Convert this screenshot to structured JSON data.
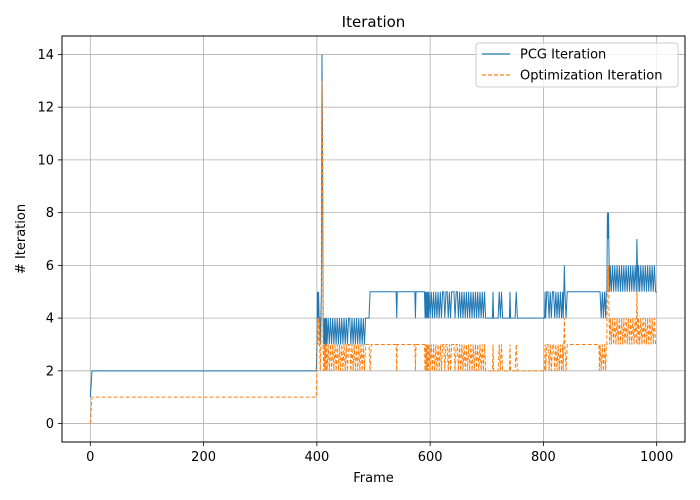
{
  "chart_data": {
    "type": "line",
    "title": "Iteration",
    "xlabel": "Frame",
    "ylabel": "# Iteration",
    "xlim": [
      -50,
      1050
    ],
    "ylim": [
      -0.7,
      14.7
    ],
    "xticks": [
      0,
      200,
      400,
      600,
      800,
      1000
    ],
    "yticks": [
      0,
      2,
      4,
      6,
      8,
      10,
      12,
      14
    ],
    "grid": true,
    "legend_position": "top-right",
    "series": [
      {
        "name": "PCG Iteration",
        "color": "#1f77b4",
        "style": "solid",
        "x": [
          0,
          3,
          4,
          399,
          400,
          401,
          402,
          403,
          404,
          405,
          406,
          407,
          408,
          409,
          410,
          411,
          412,
          413,
          414,
          415,
          416,
          417,
          418,
          420,
          422,
          424,
          426,
          428,
          430,
          432,
          434,
          436,
          438,
          440,
          442,
          444,
          446,
          448,
          450,
          452,
          454,
          456,
          458,
          460,
          462,
          464,
          466,
          468,
          470,
          472,
          474,
          476,
          478,
          480,
          482,
          484,
          486,
          488,
          490,
          492,
          494,
          496,
          498,
          500,
          540,
          541,
          542,
          573,
          574,
          575,
          590,
          591,
          592,
          593,
          594,
          595,
          596,
          597,
          598,
          600,
          602,
          604,
          606,
          608,
          610,
          612,
          614,
          616,
          618,
          620,
          622,
          624,
          626,
          628,
          630,
          632,
          634,
          636,
          638,
          640,
          642,
          644,
          646,
          648,
          650,
          652,
          654,
          656,
          658,
          660,
          662,
          664,
          666,
          668,
          670,
          672,
          674,
          676,
          678,
          680,
          682,
          684,
          686,
          688,
          690,
          692,
          694,
          696,
          698,
          700,
          710,
          711,
          712,
          720,
          722,
          724,
          726,
          728,
          730,
          740,
          741,
          742,
          750,
          752,
          754,
          756,
          760,
          762,
          764,
          766,
          768,
          770,
          800,
          801,
          802,
          803,
          804,
          806,
          808,
          810,
          812,
          814,
          816,
          818,
          820,
          822,
          824,
          826,
          828,
          830,
          832,
          834,
          835,
          836,
          837,
          838,
          840,
          842,
          844,
          850,
          880,
          898,
          899,
          900,
          902,
          904,
          906,
          908,
          910,
          911,
          912,
          913,
          914,
          915,
          916,
          917,
          918,
          920,
          922,
          924,
          926,
          928,
          930,
          932,
          934,
          936,
          938,
          940,
          942,
          944,
          946,
          948,
          950,
          952,
          954,
          956,
          958,
          960,
          962,
          964,
          965,
          966,
          967,
          968,
          970,
          972,
          974,
          976,
          978,
          980,
          982,
          984,
          986,
          988,
          990,
          992,
          994,
          996,
          998,
          1000
        ],
        "y": [
          1,
          2,
          2,
          2,
          3,
          5,
          4,
          5,
          4,
          4,
          3,
          4,
          5,
          14,
          11,
          4,
          3,
          4,
          3,
          4,
          3,
          4,
          3,
          4,
          3,
          4,
          3,
          4,
          3,
          4,
          3,
          4,
          3,
          4,
          3,
          4,
          3,
          4,
          3,
          4,
          3,
          4,
          4,
          3,
          4,
          3,
          4,
          3,
          4,
          3,
          4,
          3,
          4,
          3,
          4,
          3,
          4,
          4,
          4,
          4,
          5,
          5,
          5,
          5,
          5,
          4,
          5,
          5,
          4,
          5,
          5,
          4,
          5,
          4,
          5,
          4,
          5,
          4,
          5,
          4,
          5,
          4,
          5,
          4,
          5,
          4,
          5,
          4,
          5,
          4,
          5,
          5,
          4,
          5,
          5,
          4,
          5,
          4,
          5,
          5,
          5,
          4,
          5,
          5,
          4,
          5,
          4,
          5,
          4,
          5,
          4,
          5,
          4,
          5,
          4,
          5,
          4,
          5,
          4,
          5,
          4,
          5,
          4,
          5,
          4,
          5,
          4,
          5,
          4,
          4,
          4,
          5,
          4,
          4,
          5,
          4,
          5,
          4,
          4,
          4,
          5,
          4,
          4,
          5,
          4,
          4,
          4,
          4,
          4,
          4,
          4,
          4,
          4,
          4,
          4,
          5,
          4,
          5,
          5,
          4,
          5,
          4,
          5,
          5,
          4,
          5,
          4,
          5,
          4,
          5,
          4,
          5,
          4,
          5,
          6,
          5,
          4,
          5,
          5,
          5,
          5,
          5,
          5,
          5,
          4,
          5,
          4,
          5,
          4,
          5,
          5,
          8,
          7,
          8,
          6,
          5,
          6,
          5,
          6,
          5,
          6,
          5,
          6,
          5,
          6,
          5,
          6,
          5,
          6,
          5,
          6,
          5,
          6,
          5,
          6,
          5,
          6,
          5,
          6,
          5,
          7,
          6,
          5,
          6,
          5,
          6,
          5,
          6,
          5,
          6,
          5,
          6,
          5,
          6,
          5,
          6,
          5,
          6,
          5,
          5
        ]
      },
      {
        "name": "Optimization Iteration",
        "color": "#ff7f0e",
        "style": "dashed",
        "x": [
          0,
          3,
          4,
          399,
          400,
          401,
          402,
          403,
          404,
          405,
          406,
          407,
          408,
          409,
          410,
          411,
          412,
          413,
          414,
          415,
          416,
          417,
          418,
          420,
          422,
          424,
          426,
          428,
          430,
          432,
          434,
          436,
          438,
          440,
          442,
          444,
          446,
          448,
          450,
          452,
          454,
          456,
          458,
          460,
          462,
          464,
          466,
          468,
          470,
          472,
          474,
          476,
          478,
          480,
          482,
          484,
          486,
          488,
          490,
          492,
          494,
          496,
          498,
          500,
          540,
          541,
          542,
          573,
          574,
          575,
          590,
          591,
          592,
          593,
          594,
          595,
          596,
          597,
          598,
          600,
          602,
          604,
          606,
          608,
          610,
          612,
          614,
          616,
          618,
          620,
          622,
          624,
          626,
          628,
          630,
          632,
          634,
          636,
          638,
          640,
          642,
          644,
          646,
          648,
          650,
          652,
          654,
          656,
          658,
          660,
          662,
          664,
          666,
          668,
          670,
          672,
          674,
          676,
          678,
          680,
          682,
          684,
          686,
          688,
          690,
          692,
          694,
          696,
          698,
          700,
          710,
          711,
          712,
          720,
          722,
          724,
          726,
          728,
          730,
          740,
          741,
          742,
          750,
          752,
          754,
          756,
          760,
          762,
          764,
          766,
          768,
          770,
          800,
          801,
          802,
          803,
          804,
          806,
          808,
          810,
          812,
          814,
          816,
          818,
          820,
          822,
          824,
          826,
          828,
          830,
          832,
          834,
          835,
          836,
          837,
          838,
          840,
          842,
          844,
          850,
          880,
          898,
          899,
          900,
          902,
          904,
          906,
          908,
          910,
          911,
          912,
          913,
          914,
          915,
          916,
          917,
          918,
          920,
          922,
          924,
          926,
          928,
          930,
          932,
          934,
          936,
          938,
          940,
          942,
          944,
          946,
          948,
          950,
          952,
          954,
          956,
          958,
          960,
          962,
          964,
          965,
          966,
          967,
          968,
          970,
          972,
          974,
          976,
          978,
          980,
          982,
          984,
          986,
          988,
          990,
          992,
          994,
          996,
          998,
          1000
        ],
        "y": [
          0,
          1,
          1,
          1,
          2,
          4,
          3,
          4,
          3,
          3,
          2,
          3,
          4,
          13,
          10,
          3,
          2,
          3,
          2,
          3,
          2,
          3,
          2,
          3,
          2,
          3,
          2,
          3,
          2,
          3,
          2,
          3,
          2,
          3,
          2,
          3,
          2,
          3,
          2,
          3,
          2,
          3,
          3,
          2,
          3,
          2,
          3,
          2,
          3,
          2,
          3,
          2,
          3,
          2,
          3,
          2,
          3,
          3,
          3,
          3,
          2,
          3,
          3,
          3,
          3,
          2,
          3,
          3,
          2,
          3,
          3,
          2,
          3,
          2,
          3,
          2,
          3,
          2,
          3,
          2,
          3,
          2,
          3,
          2,
          3,
          2,
          3,
          2,
          3,
          2,
          3,
          3,
          2,
          3,
          3,
          2,
          3,
          2,
          3,
          3,
          3,
          2,
          3,
          3,
          2,
          3,
          2,
          3,
          2,
          3,
          2,
          3,
          2,
          3,
          2,
          3,
          2,
          3,
          2,
          3,
          2,
          3,
          2,
          3,
          2,
          3,
          2,
          3,
          2,
          2,
          2,
          3,
          2,
          2,
          3,
          2,
          3,
          2,
          2,
          2,
          3,
          2,
          2,
          3,
          2,
          2,
          2,
          2,
          2,
          2,
          2,
          2,
          2,
          2,
          2,
          3,
          2,
          3,
          3,
          2,
          3,
          2,
          3,
          3,
          2,
          3,
          2,
          3,
          2,
          3,
          2,
          3,
          2,
          3,
          4,
          3,
          2,
          3,
          3,
          3,
          3,
          3,
          2,
          3,
          2,
          3,
          2,
          3,
          2,
          3,
          3,
          6,
          5,
          6,
          4,
          3,
          4,
          3,
          4,
          3,
          4,
          3,
          4,
          3,
          4,
          3,
          4,
          3,
          4,
          3,
          4,
          3,
          4,
          3,
          4,
          3,
          4,
          3,
          4,
          3,
          5,
          4,
          3,
          4,
          3,
          4,
          3,
          4,
          3,
          4,
          3,
          4,
          3,
          4,
          3,
          4,
          3,
          4,
          3,
          3
        ]
      }
    ]
  }
}
